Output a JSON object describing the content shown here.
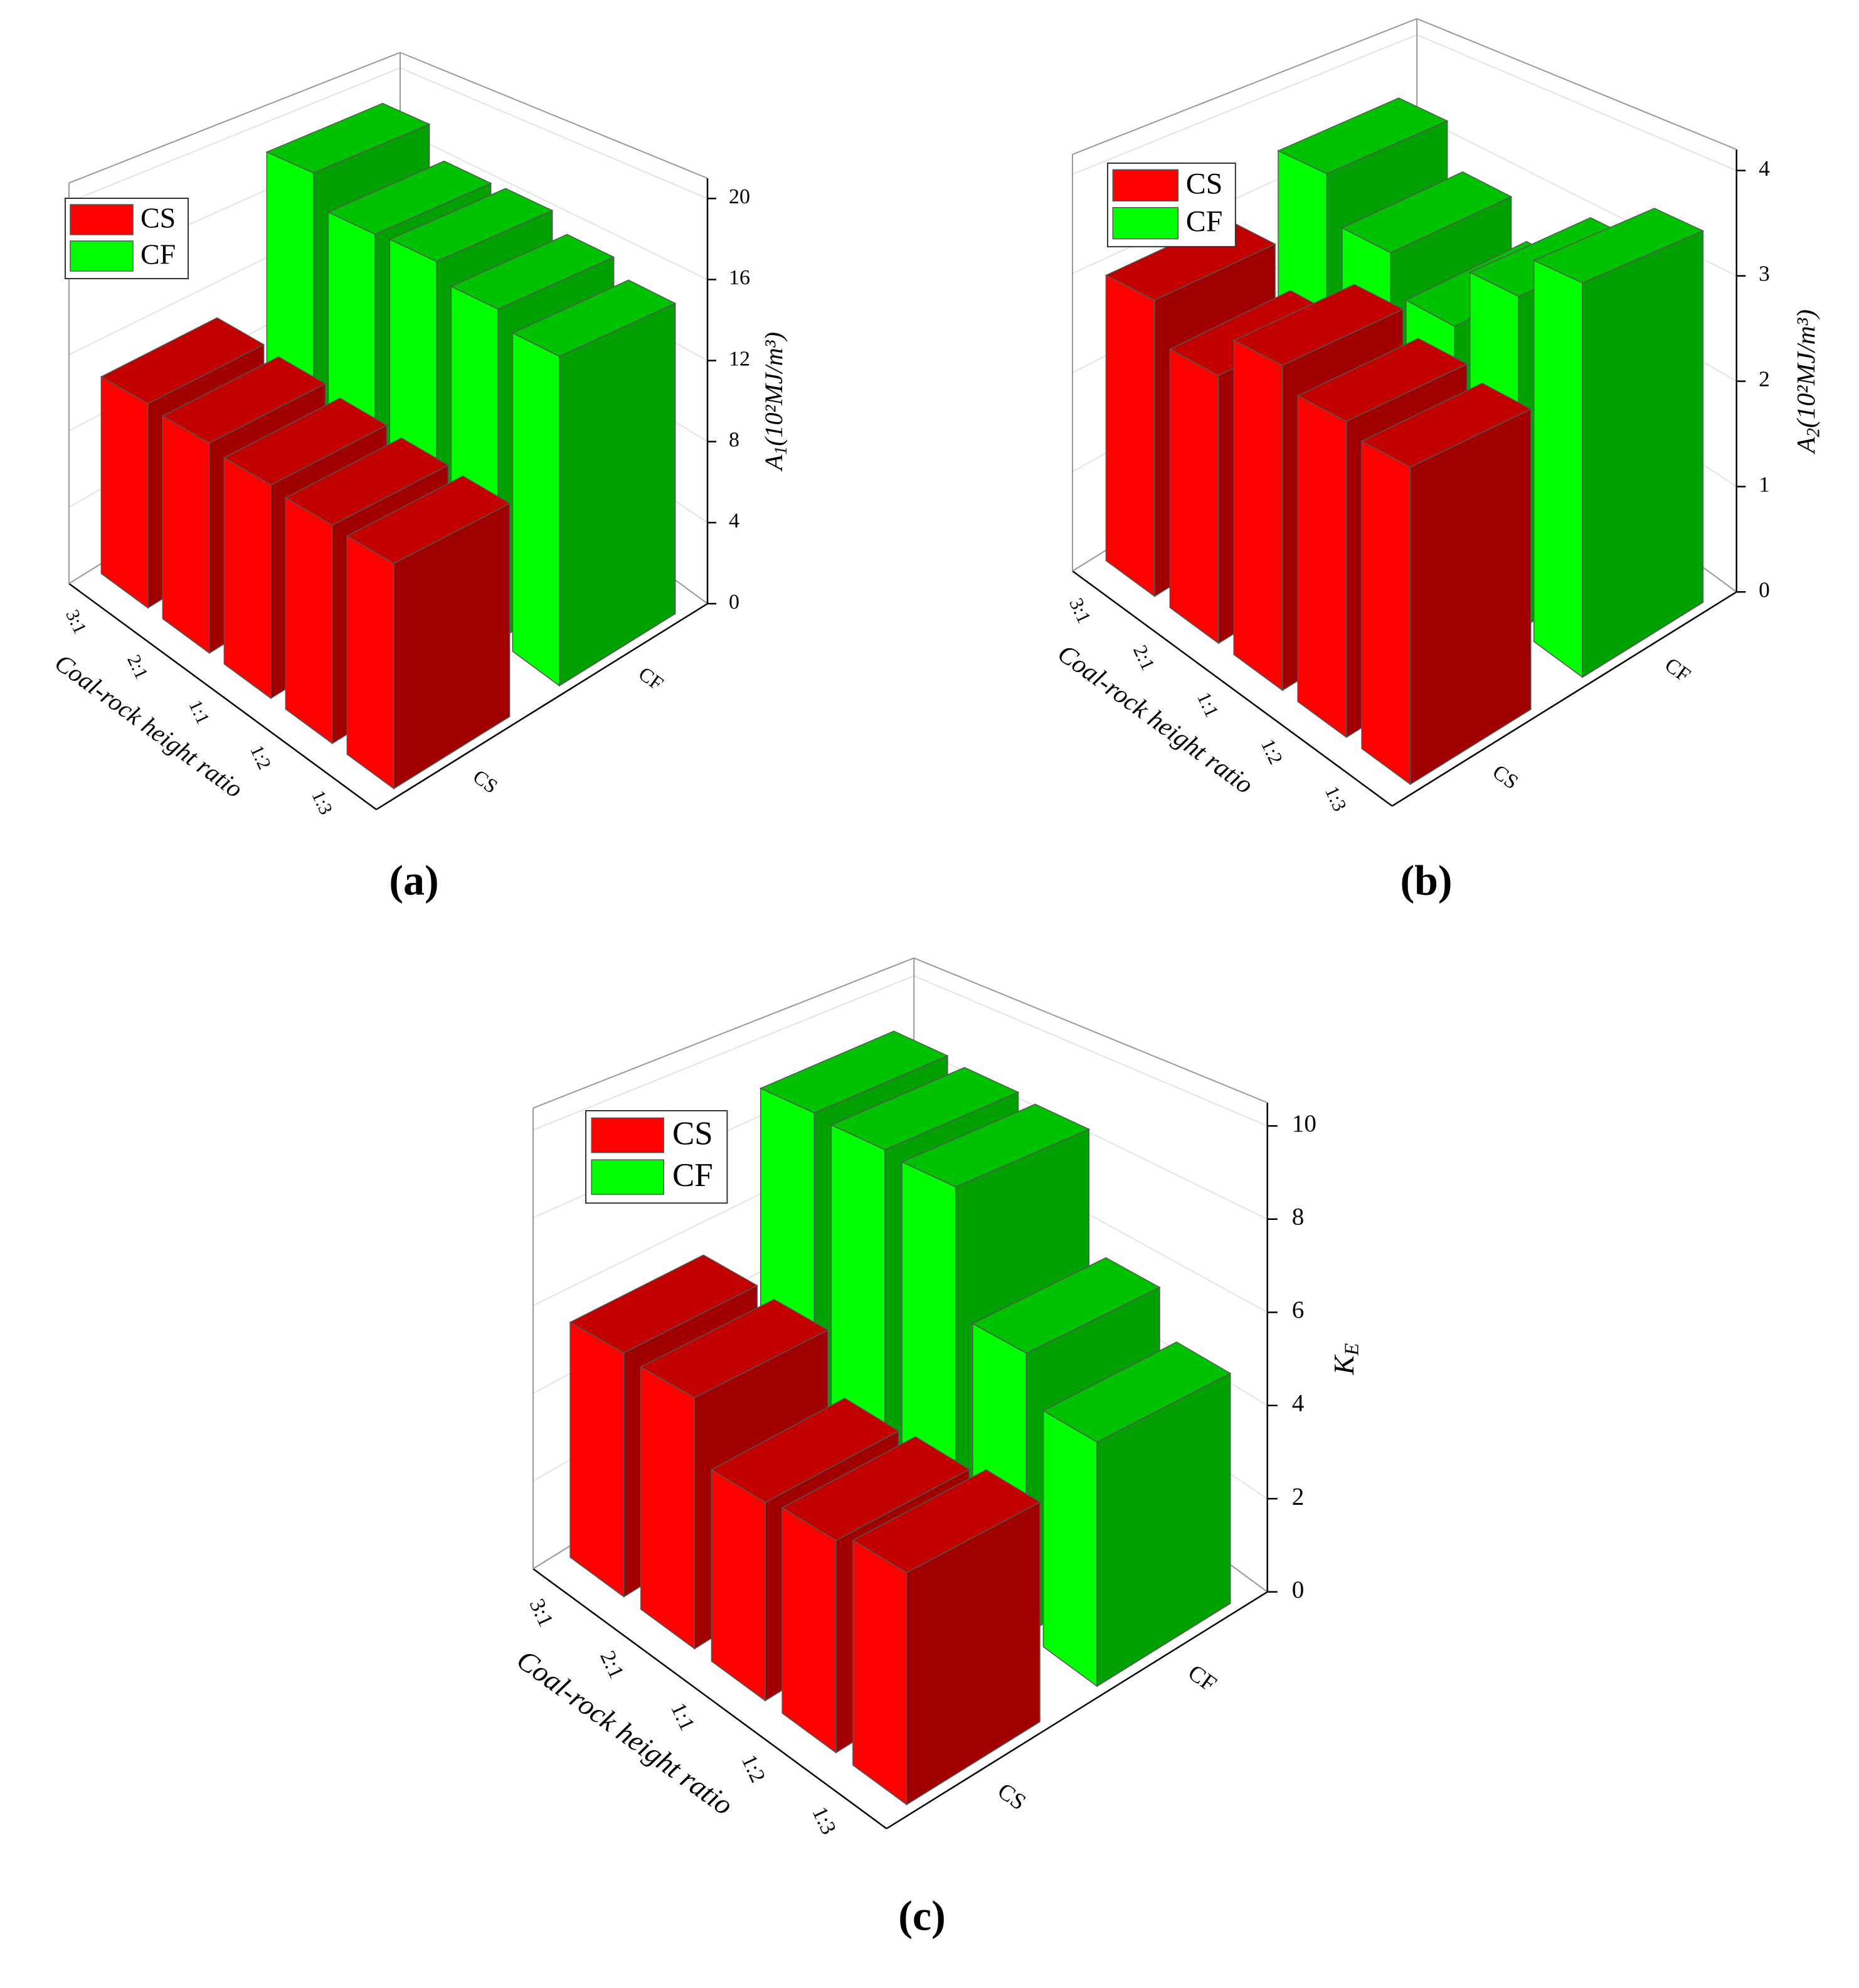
{
  "chart_data": [
    {
      "type": "bar3d",
      "panel": "(a)",
      "xlabel": "Coal-rock height ratio",
      "zlabel": {
        "main": "A",
        "sub": "1",
        "rest": "(10²MJ/m³)"
      },
      "categories": [
        "3:1",
        "2:1",
        "1:1",
        "1:2",
        "1:3"
      ],
      "series": [
        {
          "name": "CS",
          "color": "#ff0000",
          "values": [
            10.4,
            10.2,
            9.9,
            9.7,
            9.6
          ]
        },
        {
          "name": "CF",
          "color": "#00ff00",
          "values": [
            18.6,
            16.8,
            16.9,
            16.0,
            15.2
          ]
        }
      ],
      "ylim": [
        0,
        20
      ],
      "yticks": [
        0,
        4,
        8,
        12,
        16,
        20
      ],
      "grid": true,
      "legend": "upper left"
    },
    {
      "type": "bar3d",
      "panel": "(b)",
      "xlabel": "Coal-rock height ratio",
      "zlabel": {
        "main": "A",
        "sub": "2",
        "rest": "(10²MJ/m³)"
      },
      "categories": [
        "3:1",
        "2:1",
        "1:1",
        "1:2",
        "1:3"
      ],
      "series": [
        {
          "name": "CS",
          "color": "#ff0000",
          "values": [
            2.9,
            2.5,
            2.9,
            2.7,
            2.6
          ]
        },
        {
          "name": "CF",
          "color": "#00ff00",
          "values": [
            3.4,
            2.9,
            2.5,
            3.1,
            3.5
          ]
        }
      ],
      "ylim": [
        0,
        4
      ],
      "yticks": [
        0,
        1,
        2,
        3,
        4
      ],
      "grid": true,
      "legend": "upper left"
    },
    {
      "type": "bar3d",
      "panel": "(c)",
      "xlabel": "Coal-rock height ratio",
      "zlabel": {
        "main": "K",
        "sub": "E"
      },
      "categories": [
        "3:1",
        "2:1",
        "1:1",
        "1:2",
        "1:3"
      ],
      "series": [
        {
          "name": "CS",
          "color": "#ff0000",
          "values": [
            5.4,
            5.3,
            4.0,
            4.1,
            4.3
          ]
        },
        {
          "name": "CF",
          "color": "#00ff00",
          "values": [
            8.9,
            8.8,
            8.7,
            5.9,
            4.9
          ]
        }
      ],
      "ylim": [
        0,
        10
      ],
      "yticks": [
        0,
        2,
        4,
        6,
        8,
        10
      ],
      "grid": true,
      "legend": "upper left"
    }
  ]
}
